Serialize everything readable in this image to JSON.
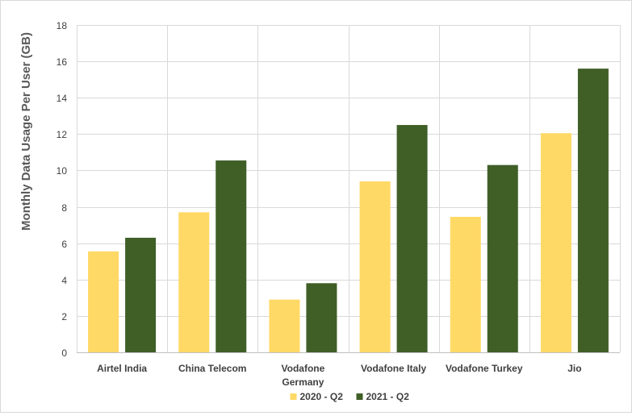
{
  "chart_data": {
    "type": "bar",
    "title": "",
    "xlabel": "",
    "ylabel": "Monthly Data Usage Per User (GB)",
    "ylim": [
      0,
      18
    ],
    "yticks": [
      0,
      2,
      4,
      6,
      8,
      10,
      12,
      14,
      16,
      18
    ],
    "grid": true,
    "legend_position": "bottom",
    "categories": [
      [
        "Airtel India"
      ],
      [
        "China Telecom"
      ],
      [
        "Vodafone",
        "Germany"
      ],
      [
        "Vodafone Italy"
      ],
      [
        "Vodafone Turkey"
      ],
      [
        "Jio"
      ]
    ],
    "series": [
      {
        "name": "2020 - Q2",
        "color": "#ffd966",
        "values": [
          5.55,
          7.7,
          2.9,
          9.4,
          7.45,
          12.05
        ]
      },
      {
        "name": "2021 - Q2",
        "color": "#3f5f27",
        "values": [
          6.3,
          10.55,
          3.8,
          12.5,
          10.3,
          15.6
        ]
      }
    ]
  }
}
